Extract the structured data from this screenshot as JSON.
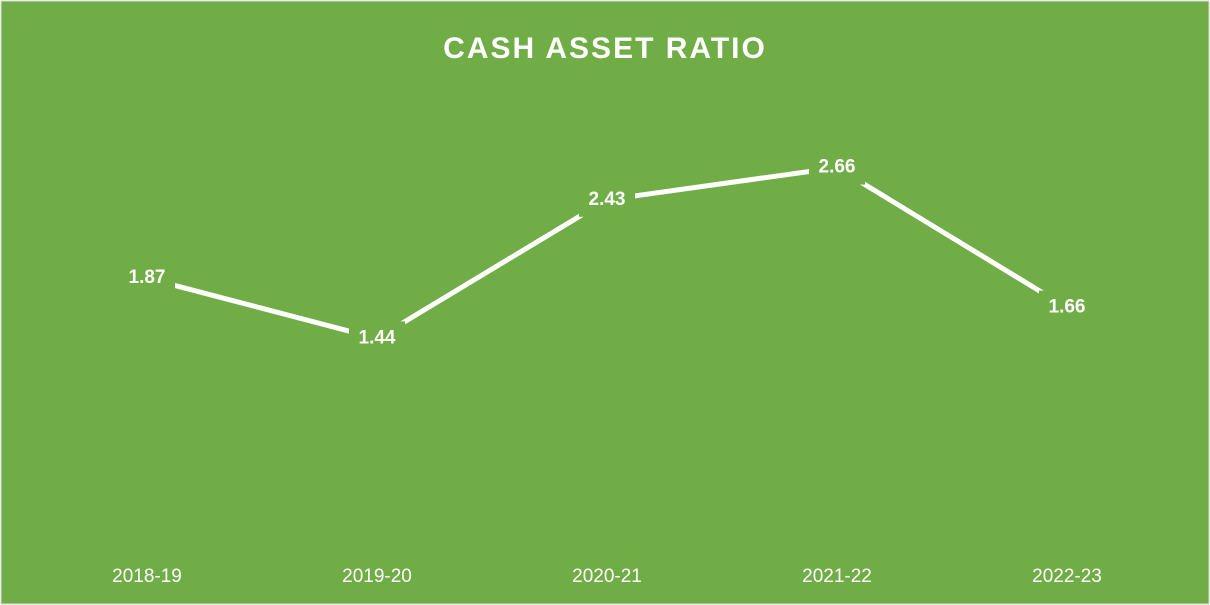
{
  "chart_data": {
    "type": "line",
    "title": "CASH ASSET RATIO",
    "categories": [
      "2018-19",
      "2019-20",
      "2020-21",
      "2021-22",
      "2022-23"
    ],
    "values": [
      1.87,
      1.44,
      2.43,
      2.66,
      1.66
    ],
    "color": "#ffffff",
    "ylim": [
      0,
      3
    ]
  }
}
